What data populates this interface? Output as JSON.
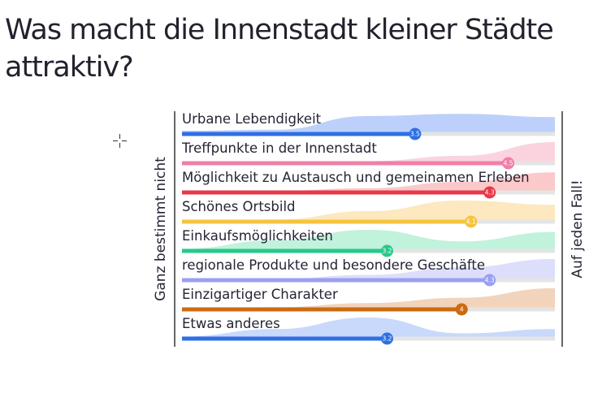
{
  "title": "Was macht die Innenstadt kleiner Städte attraktiv?",
  "left_label": "Ganz bestimmt nicht",
  "right_label": "Auf jeden Fall!",
  "chart_data": {
    "type": "bar",
    "xlim": [
      1,
      5
    ],
    "categories": [
      "Urbane Lebendigkeit",
      "Treffpunkte in der Innenstadt",
      "Möglichkeit zu Austausch und gemeinamen Erleben",
      "Schönes Ortsbild",
      "Einkaufsmöglichkeiten",
      "regionale Produkte und besondere Geschäfte",
      "Einzigartiger Charakter",
      "Etwas anderes"
    ],
    "values": [
      3.5,
      4.5,
      4.3,
      4.1,
      3.2,
      4.3,
      4,
      3.2
    ],
    "value_labels": [
      "3.5",
      "4.5",
      "4.3",
      "4.1",
      "3.2",
      "4.3",
      "4",
      "3.2"
    ],
    "colors": [
      "#2f6fe4",
      "#f07fa8",
      "#e8384a",
      "#f5c43e",
      "#27c98a",
      "#9a9ff0",
      "#cc6a12",
      "#2f6fe4"
    ],
    "distribution_colors": [
      "#bcd0fb",
      "#fbd3df",
      "#fbc9c9",
      "#fde8bf",
      "#c1f2dc",
      "#dcdefb",
      "#f2d3bb",
      "#c8d9fb"
    ],
    "distributions": [
      [
        0.15,
        0.2,
        0.85,
        0.95,
        0.8
      ],
      [
        0.03,
        0.05,
        0.1,
        0.35,
        1.0
      ],
      [
        0.03,
        0.08,
        0.2,
        0.5,
        0.95
      ],
      [
        0.03,
        0.1,
        0.5,
        1.0,
        0.8
      ],
      [
        0.1,
        0.5,
        1.0,
        0.45,
        0.9
      ],
      [
        0.02,
        0.05,
        0.25,
        0.6,
        1.0
      ],
      [
        0.03,
        0.1,
        0.3,
        0.55,
        1.0
      ],
      [
        0.1,
        0.45,
        1.0,
        0.25,
        0.45
      ]
    ]
  }
}
